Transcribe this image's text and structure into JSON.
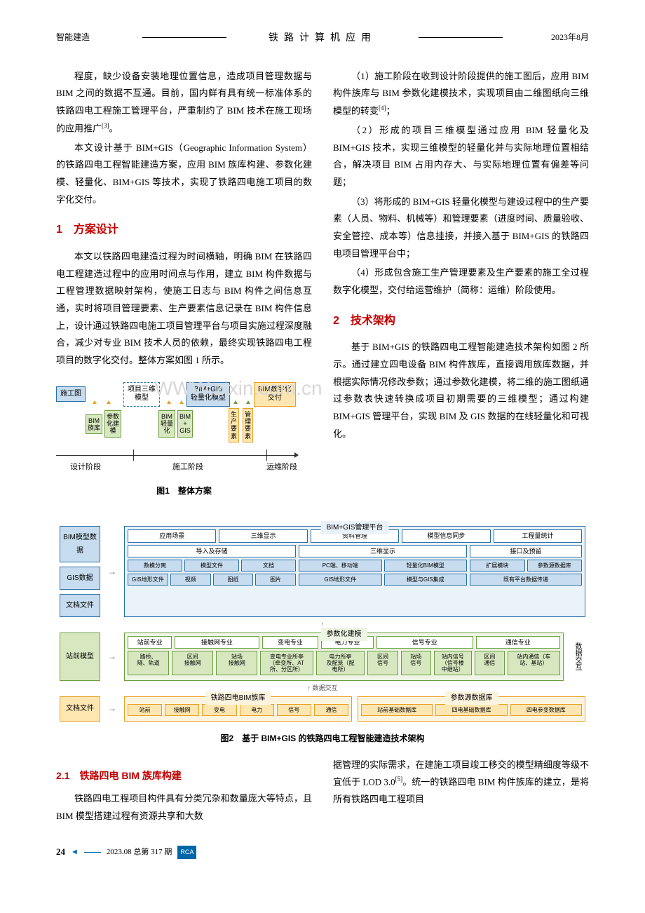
{
  "header": {
    "left": "智能建造",
    "center": "铁路计算机应用",
    "right": "2023年8月"
  },
  "col_left": {
    "p1": "程度，缺少设备安装地理位置信息，造成项目管理数据与 BIM 之间的数据不互通。目前，国内鲜有具有统一标准体系的铁路四电工程施工管理平台，严重制约了 BIM 技术在施工现场的应用推广",
    "p1_ref": "[3]",
    "p1_end": "。",
    "p2": "本文设计基于 BIM+GIS（Geographic Information System）的铁路四电工程智能建造方案，应用 BIM 族库构建、参数化建模、轻量化、BIM+GIS 等技术，实现了铁路四电施工项目的数字化交付。",
    "h1": "1　方案设计",
    "p3": "本文以铁路四电建造过程为时间横轴，明确 BIM 在铁路四电工程建造过程中的应用时间点与作用，建立 BIM 构件数据与工程管理数据映射架构，使施工日志与 BIM 构件之间信息互通，实时将项目管理要素、生产要素信息记录在 BIM 构件信息上，设计通过铁路四电施工项目管理平台与项目实施过程深度融合，减少对专业 BIM 技术人员的依赖，最终实现铁路四电工程项目的数字化交付。整体方案如图 1 所示。"
  },
  "col_right": {
    "p1": "（1）施工阶段在收到设计阶段提供的施工图后，应用 BIM 构件族库与 BIM 参数化建模技术，实现项目由二维图纸向三维模型的转变",
    "p1_ref": "[4]",
    "p1_end": "；",
    "p2": "（2）形成的项目三维模型通过应用 BIM 轻量化及 BIM+GIS 技术，实现三维模型的轻量化并与实际地理位置相结合，解决项目 BIM 占用内存大、与实际地理位置有偏差等问题；",
    "p3": "（3）将形成的 BIM+GIS 轻量化模型与建设过程中的生产要素（人员、物料、机械等）和管理要素（进度时间、质量验收、安全管控、成本等）信息挂接，并接入基于 BIM+GIS 的铁路四电项目管理平台中；",
    "p4": "（4）形成包含施工生产管理要素及生产要素的施工全过程数字化模型，交付给运营维护（简称：运维）阶段使用。",
    "h2": "2　技术架构",
    "p5": "基于 BIM+GIS 的铁路四电工程智能建造技术架构如图 2 所示。通过建立四电设备 BIM 构件族库，直接调用族库数据，并根据实际情况修改参数；通过参数化建模，将二维的施工图纸通过参数表快速转换成项目初期需要的三维模型；通过构建 BIM+GIS 管理平台，实现 BIM 及 GIS 数据的在线轻量化和可视化。"
  },
  "watermark": "WWW.zixin.com.cn",
  "fig1": {
    "caption": "图1　整体方案",
    "boxes": {
      "b1": "施工图",
      "b2": "项目三维\n模型",
      "b3": "BIM+GIS\n轻量化模型",
      "b4": "BIM数字化\n交付"
    },
    "small": {
      "s1": "BIM\n族库",
      "s2": "参数\n化建\n模",
      "s3": "BIM\n轻量\n化",
      "s4": "BIM\n+\nGIS",
      "s5": "生\n产\n要\n素",
      "s6": "管\n理\n要\n素"
    },
    "labels": {
      "l1": "设计阶段",
      "l2": "施工阶段",
      "l3": "运维阶段"
    },
    "colors": {
      "box_border": "#2a6fa8",
      "box_bg": "#c7dcee",
      "dashed_border": "#2a6fa8",
      "box4_border": "#e8a023",
      "box4_bg": "#fde6b0",
      "small_green_border": "#6b9e3f",
      "small_green_bg": "#d7e8c0",
      "small_orange_border": "#e8a023",
      "small_orange_bg": "#fde6b0",
      "arrow_left": "#e8a023",
      "arrow_right": "#6b9e3f"
    }
  },
  "fig2": {
    "caption": "图2　基于 BIM+GIS 的铁路四电工程智能建造技术架构",
    "colors": {
      "blue_border": "#2a6fa8",
      "blue_bg": "#c7dcee",
      "green_border": "#6b9e3f",
      "green_bg": "#d7e8c0",
      "orange_border": "#e8a023",
      "orange_bg": "#fde6b0",
      "panel_border": "#2a6fa8",
      "panel_bg": "#eaf3fa",
      "panel_green_bg": "#eef5e4",
      "panel_orange_bg": "#fdf4e0"
    },
    "left_boxes": {
      "b1": "BIM模型数据",
      "b2": "GIS数据",
      "b3": "文档文件",
      "b4": "站前模型",
      "b5": "文档文件"
    },
    "panel_top": {
      "title": "BIM+GIS管理平台",
      "row1": [
        "应用场景",
        "三维显示",
        "资料管理",
        "模型信息同步",
        "工程量统计"
      ],
      "row2_groups": [
        "导入及存储",
        "三维显示",
        "接口及预留"
      ],
      "row3a": [
        "数模分离",
        "模型文件",
        "文档"
      ],
      "row3b": [
        "PC端、移动端",
        "轻量化BIM模型"
      ],
      "row3c": [
        "扩展模块",
        "参数源数据库"
      ],
      "row4a": [
        "GIS地形文件",
        "视频",
        "图纸",
        "图片"
      ],
      "row4b": [
        "GIS地形文件",
        "模型与GIS集成"
      ],
      "row4c": [
        "既有平台数据传递"
      ]
    },
    "panel_mid": {
      "title": "参数化建模",
      "headers": [
        "站前专业",
        "接触网专业",
        "变电专业",
        "电力专业",
        "信号专业",
        "通信专业"
      ],
      "cells": [
        "路桥、\n隧、轨道",
        "区间\n接触网",
        "站场\n接触网",
        "变电专业所亭\n（牵变所、AT\n所、分区所）",
        "电力所亭\n及配笼（配\n电所）",
        "区间\n信号",
        "站场\n信号",
        "站内信号\n（信号楼\n中继站）",
        "区间\n通信",
        "站内通信（车\n站、基站）"
      ],
      "side": "数据交互"
    },
    "panel_bot": {
      "arrow_label": "数据交互",
      "left_title": "铁路四电BIM族库",
      "left_cells": [
        "站前",
        "接触网",
        "变电",
        "电力",
        "信号",
        "通信"
      ],
      "right_title": "参数源数据库",
      "right_cells": [
        "站前基础数据库",
        "四电基础数据库",
        "四电参变数据库"
      ]
    }
  },
  "bottom": {
    "h21": "2.1　铁路四电 BIM 族库构建",
    "p_left": "铁路四电工程项目构件具有分类冗杂和数量庞大等特点，且 BIM 模型搭建过程有资源共享和大数",
    "p_right_a": "据管理的实际需求，在建施工项目竣工移交的模型精细度等级不宜低于 LOD 3.0",
    "p_right_ref": "[5]",
    "p_right_b": "。统一的铁路四电 BIM 构件族库的建立，是将所有铁路四电工程项目"
  },
  "footer": {
    "page": "24",
    "issue": "2023.08 总第 317 期",
    "rca": "RCA"
  }
}
